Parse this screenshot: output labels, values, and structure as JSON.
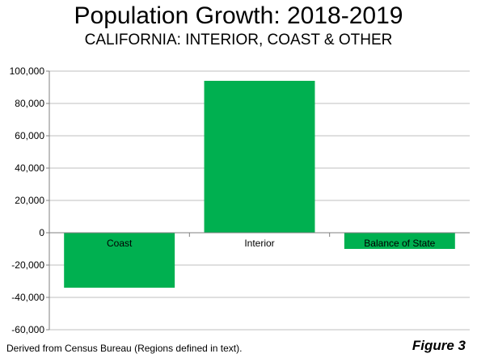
{
  "title": "Population Growth: 2018-2019",
  "subtitle": "CALIFORNIA: INTERIOR, COAST & OTHER",
  "source_note": "Derived from Census Bureau (Regions defined in text).",
  "figure_label": "Figure 3",
  "colors": {
    "bar": "#00b050",
    "axis": "#808080",
    "grid": "#bfbfbf"
  },
  "chart_data": {
    "type": "bar",
    "title": "Population Growth: 2018-2019",
    "subtitle": "CALIFORNIA: INTERIOR, COAST & OTHER",
    "categories": [
      "Coast",
      "Interior",
      "Balance of State"
    ],
    "values": [
      -34000,
      94000,
      -10000
    ],
    "ylim": [
      -60000,
      100000
    ],
    "yticks": [
      100000,
      80000,
      60000,
      40000,
      20000,
      0,
      -20000,
      -40000,
      -60000
    ],
    "ytick_labels": [
      "100,000",
      "80,000",
      "60,000",
      "40,000",
      "20,000",
      "0",
      "-20,000",
      "-40,000",
      "-60,000"
    ],
    "grid": true,
    "legend": "none"
  }
}
